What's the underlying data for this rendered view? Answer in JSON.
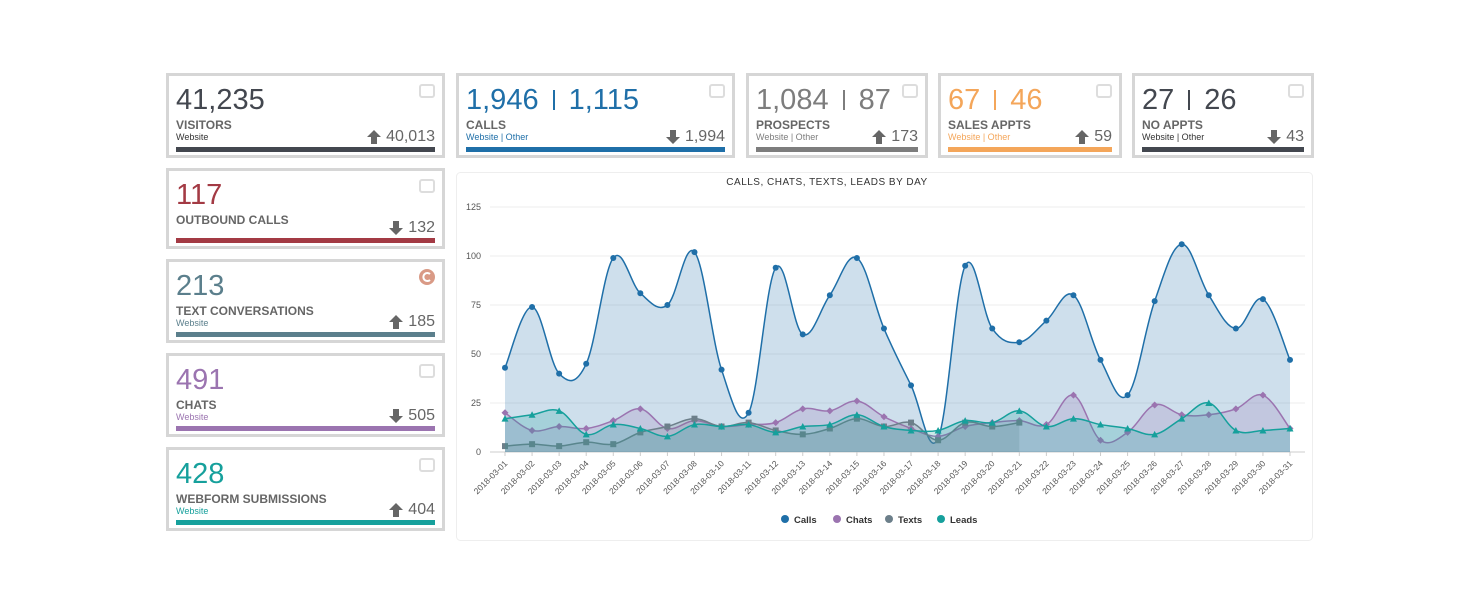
{
  "cards": [
    {
      "values": [
        "41,235"
      ],
      "label": "VISITORS",
      "sub": "Website",
      "change": "40,013",
      "trend": "up",
      "color": "#43474f"
    },
    {
      "values": [
        "1,946",
        "1,115"
      ],
      "label": "CALLS",
      "sub": "Website | Other",
      "change": "1,994",
      "trend": "down",
      "color": "#1f6fa8"
    },
    {
      "values": [
        "1,084",
        "87"
      ],
      "label": "PROSPECTS",
      "sub": "Website | Other",
      "change": "173",
      "trend": "up",
      "color": "#7d7d7d"
    },
    {
      "values": [
        "67",
        "46"
      ],
      "label": "SALES APPTS",
      "sub": "Website | Other",
      "change": "59",
      "trend": "up",
      "color": "#f4a65a"
    },
    {
      "values": [
        "27",
        "26"
      ],
      "label": "NO APPTS",
      "sub": "Website | Other",
      "change": "43",
      "trend": "down",
      "color": "#43474f"
    },
    {
      "values": [
        "117"
      ],
      "label": "OUTBOUND CALLS",
      "change": "132",
      "trend": "down",
      "color": "#a33a44"
    },
    {
      "values": [
        "213"
      ],
      "label": "TEXT CONVERSATIONS",
      "sub": "Website",
      "change": "185",
      "trend": "up",
      "color": "#5b7f8c"
    },
    {
      "values": [
        "491"
      ],
      "label": "CHATS",
      "sub": "Website",
      "change": "505",
      "trend": "down",
      "color": "#9b74b0"
    },
    {
      "values": [
        "428"
      ],
      "label": "WEBFORM SUBMISSIONS",
      "sub": "Website",
      "change": "404",
      "trend": "up",
      "color": "#16a09c"
    }
  ],
  "chart_data": {
    "type": "area",
    "title": "CALLS, CHATS, TEXTS, LEADS BY DAY",
    "categories": [
      "2018-03-01",
      "2018-03-02",
      "2018-03-03",
      "2018-03-04",
      "2018-03-05",
      "2018-03-06",
      "2018-03-07",
      "2018-03-08",
      "2018-03-10",
      "2018-03-11",
      "2018-03-12",
      "2018-03-13",
      "2018-03-14",
      "2018-03-15",
      "2018-03-16",
      "2018-03-17",
      "2018-03-18",
      "2018-03-19",
      "2018-03-20",
      "2018-03-21",
      "2018-03-22",
      "2018-03-23",
      "2018-03-24",
      "2018-03-25",
      "2018-03-26",
      "2018-03-27",
      "2018-03-28",
      "2018-03-29",
      "2018-03-30",
      "2018-03-31"
    ],
    "series": [
      {
        "name": "Calls",
        "color": "#1f6fa8",
        "marker": "circle",
        "values": [
          43,
          74,
          40,
          45,
          99,
          81,
          75,
          102,
          42,
          20,
          94,
          60,
          80,
          99,
          63,
          34,
          7,
          95,
          63,
          56,
          67,
          80,
          47,
          29,
          77,
          106,
          80,
          63,
          78,
          47
        ]
      },
      {
        "name": "Chats",
        "color": "#9b74b0",
        "marker": "diamond",
        "values": [
          20,
          11,
          13,
          12,
          16,
          22,
          12,
          16,
          13,
          14,
          15,
          22,
          21,
          26,
          18,
          12,
          8,
          13,
          15,
          16,
          14,
          29,
          6,
          10,
          24,
          19,
          19,
          22,
          29,
          12
        ]
      },
      {
        "name": "Texts",
        "color": "#6c7f8a",
        "marker": "square",
        "values": [
          3,
          4,
          3,
          5,
          4,
          10,
          13,
          17,
          13,
          15,
          11,
          9,
          12,
          17,
          13,
          15,
          6,
          15,
          13,
          15,
          null,
          null,
          null,
          null,
          null,
          null,
          null,
          null,
          null,
          null
        ]
      },
      {
        "name": "Leads",
        "color": "#16a09c",
        "marker": "triangle",
        "values": [
          17,
          19,
          21,
          9,
          14,
          12,
          8,
          14,
          13,
          14,
          10,
          13,
          14,
          19,
          13,
          11,
          11,
          16,
          15,
          21,
          13,
          17,
          14,
          12,
          9,
          17,
          25,
          11,
          11,
          12
        ]
      }
    ],
    "ylim": [
      0,
      125
    ],
    "yticks": [
      0,
      25,
      50,
      75,
      100,
      125
    ],
    "grid": true,
    "legend": "bottom"
  }
}
